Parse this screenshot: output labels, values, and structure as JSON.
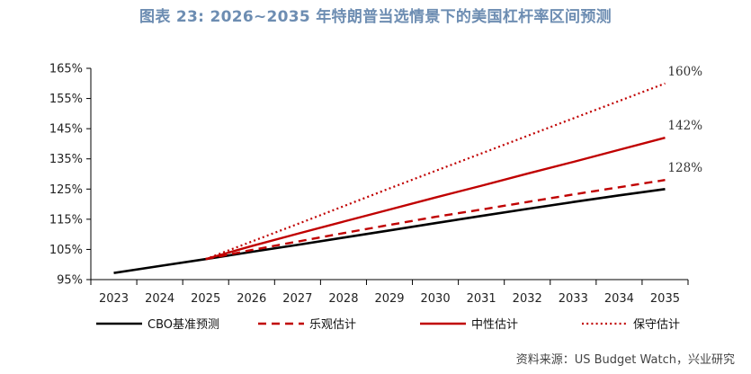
{
  "title": "图表 23: 2026~2035 年特朗普当选情景下的美国杠杆率区间预测",
  "source": "资料来源：US Budget Watch，兴业研究",
  "colors": {
    "title": "#6d8db2",
    "cbo": "#000000",
    "optimistic": "#c00000",
    "neutral": "#c00000",
    "conservative": "#c00000"
  },
  "chart_data": {
    "type": "line",
    "x": [
      2023,
      2024,
      2025,
      2026,
      2027,
      2028,
      2029,
      2030,
      2031,
      2032,
      2033,
      2034,
      2035
    ],
    "ylim": [
      95,
      165
    ],
    "yticks": [
      95,
      105,
      115,
      125,
      135,
      145,
      155,
      165
    ],
    "ytick_labels": [
      "95%",
      "105%",
      "115%",
      "125%",
      "135%",
      "145%",
      "155%",
      "165%"
    ],
    "xtick_labels": [
      "2023",
      "2024",
      "2025",
      "2026",
      "2027",
      "2028",
      "2029",
      "2030",
      "2031",
      "2032",
      "2033",
      "2034",
      "2035"
    ],
    "series": [
      {
        "name": "CBO基准预测",
        "style": "solid-black",
        "x": [
          2023,
          2024,
          2025,
          2026,
          2027,
          2028,
          2029,
          2030,
          2031,
          2032,
          2033,
          2034,
          2035
        ],
        "values": [
          97.2,
          99.5,
          101.8,
          104.2,
          106.5,
          108.9,
          111.3,
          113.7,
          116.1,
          118.4,
          120.7,
          122.9,
          125.0
        ]
      },
      {
        "name": "乐观估计",
        "style": "dashed-red",
        "x": [
          2025,
          2026,
          2027,
          2028,
          2029,
          2030,
          2031,
          2032,
          2033,
          2034,
          2035
        ],
        "values": [
          101.8,
          104.8,
          107.6,
          110.4,
          113.1,
          115.8,
          118.2,
          120.7,
          123.2,
          125.6,
          128
        ]
      },
      {
        "name": "中性估计",
        "style": "solid-red",
        "x": [
          2025,
          2026,
          2027,
          2028,
          2029,
          2030,
          2031,
          2032,
          2033,
          2034,
          2035
        ],
        "values": [
          101.8,
          106.1,
          110.2,
          114.2,
          118.2,
          122.2,
          126.1,
          130.1,
          134.0,
          138.0,
          142
        ]
      },
      {
        "name": "保守估计",
        "style": "dotted-red",
        "x": [
          2025,
          2026,
          2027,
          2028,
          2029,
          2030,
          2031,
          2032,
          2033,
          2034,
          2035
        ],
        "values": [
          101.8,
          107.6,
          113.4,
          119.3,
          125.2,
          131.0,
          136.8,
          142.6,
          148.4,
          154.2,
          160
        ]
      }
    ],
    "end_labels": [
      {
        "series": "保守估计",
        "text": "160%",
        "value": 160
      },
      {
        "series": "中性估计",
        "text": "142%",
        "value": 142
      },
      {
        "series": "乐观估计",
        "text": "128%",
        "value": 128
      }
    ],
    "legend": {
      "position": "bottom",
      "items": [
        "CBO基准预测",
        "乐观估计",
        "中性估计",
        "保守估计"
      ]
    }
  }
}
